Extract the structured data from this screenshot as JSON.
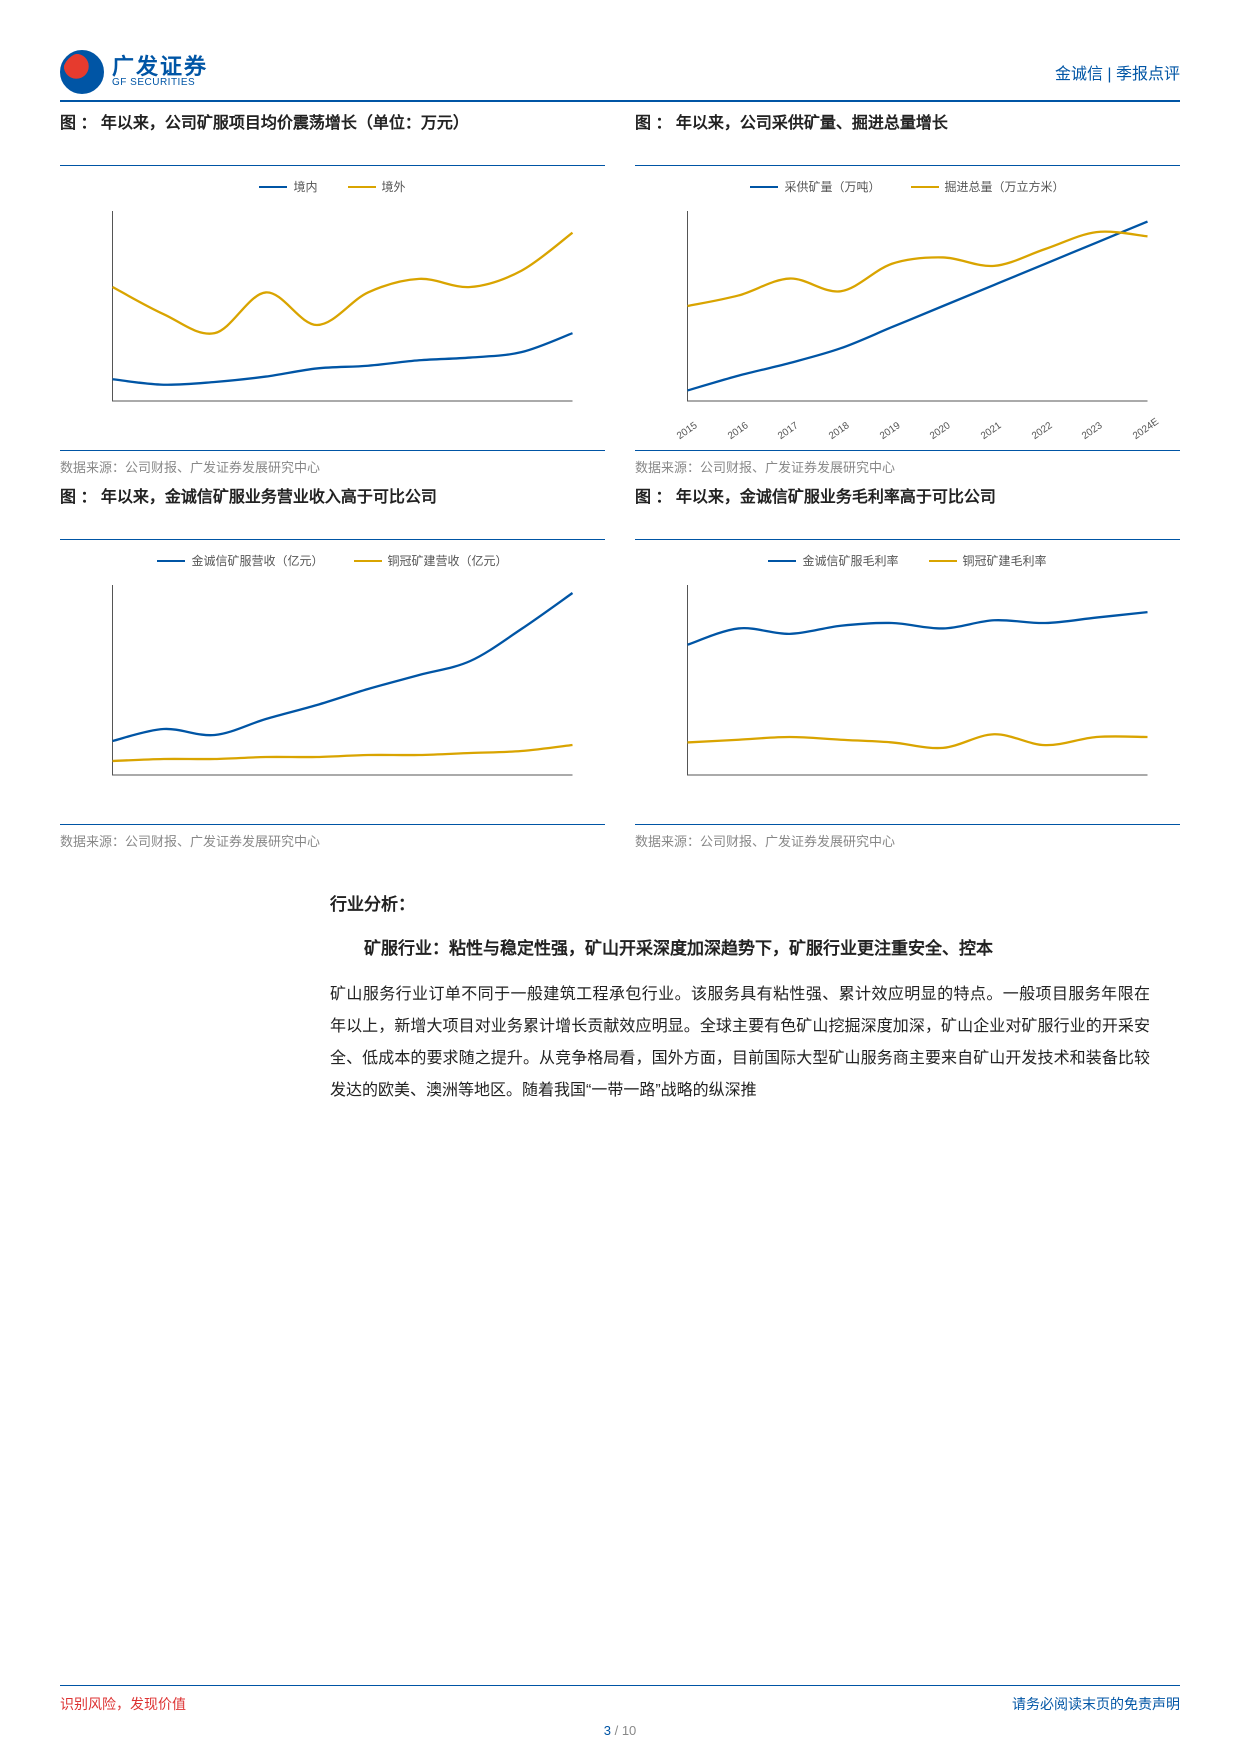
{
  "header": {
    "logo_cn": "广发证券",
    "logo_en": "GF SECURITIES",
    "right": "金诚信 | 季报点评"
  },
  "charts": {
    "c1": {
      "title": "图  ：       年以来，公司矿服项目均价震荡增长（单位：万元）",
      "source": "数据来源：公司财报、广发证券发展研究中心",
      "type": "line",
      "series": [
        {
          "name": "境内",
          "color": "#0055a5",
          "values": [
            38,
            36,
            37,
            39,
            42,
            43,
            45,
            46,
            48,
            55
          ]
        },
        {
          "name": "境外",
          "color": "#d9a400",
          "values": [
            72,
            62,
            55,
            70,
            58,
            70,
            75,
            72,
            78,
            92
          ]
        }
      ],
      "ylim": [
        30,
        100
      ]
    },
    "c2": {
      "title": "图  ：       年以来，公司采供矿量、掘进总量增长",
      "source": "数据来源：公司财报、广发证券发展研究中心",
      "type": "line",
      "xlabels": [
        "2015",
        "2016",
        "2017",
        "2018",
        "2019",
        "2020",
        "2021",
        "2022",
        "2023",
        "2024E"
      ],
      "series": [
        {
          "name": "采供矿量（万吨）",
          "color": "#0055a5",
          "values": [
            15,
            22,
            28,
            35,
            45,
            55,
            65,
            75,
            85,
            95
          ]
        },
        {
          "name": "掘进总量（万立方米）",
          "color": "#d9a400",
          "values": [
            55,
            60,
            68,
            62,
            75,
            78,
            74,
            82,
            90,
            88
          ]
        }
      ],
      "ylim": [
        10,
        100
      ]
    },
    "c3": {
      "title": "图  ：       年以来，金诚信矿服业务营业收入高于可比公司",
      "source": "数据来源：公司财报、广发证券发展研究中心",
      "type": "line",
      "series": [
        {
          "name": "金诚信矿服营收（亿元）",
          "color": "#0055a5",
          "values": [
            22,
            28,
            25,
            33,
            40,
            48,
            55,
            62,
            78,
            96
          ]
        },
        {
          "name": "铜冠矿建营收（亿元）",
          "color": "#d9a400",
          "values": [
            12,
            13,
            13,
            14,
            14,
            15,
            15,
            16,
            17,
            20
          ]
        }
      ],
      "ylim": [
        5,
        100
      ]
    },
    "c4": {
      "title": "图  ：       年以来，金诚信矿服业务毛利率高于可比公司",
      "source": "数据来源：公司财报、广发证券发展研究中心",
      "type": "line",
      "series": [
        {
          "name": "金诚信矿服毛利率",
          "color": "#0055a5",
          "values": [
            68,
            74,
            72,
            75,
            76,
            74,
            77,
            76,
            78,
            80
          ]
        },
        {
          "name": "铜冠矿建毛利率",
          "color": "#d9a400",
          "values": [
            32,
            33,
            34,
            33,
            32,
            30,
            35,
            31,
            34,
            34
          ]
        }
      ],
      "ylim": [
        20,
        90
      ]
    }
  },
  "chart_style": {
    "axis_color": "#555555",
    "line_width": 2.3,
    "background": "#ffffff",
    "font_size_legend": 12,
    "font_size_xlabel": 10
  },
  "text": {
    "section_title": "行业分析：",
    "section_sub": "矿服行业：粘性与稳定性强，矿山开采深度加深趋势下，矿服行业更注重安全、控本",
    "para": "矿山服务行业订单不同于一般建筑工程承包行业。该服务具有粘性强、累计效应明显的特点。一般项目服务年限在   年以上，新增大项目对业务累计增长贡献效应明显。全球主要有色矿山挖掘深度加深，矿山企业对矿服行业的开采安全、低成本的要求随之提升。从竞争格局看，国外方面，目前国际大型矿山服务商主要来自矿山开发技术和装备比较发达的欧美、澳洲等地区。随着我国“一带一路”战略的纵深推"
  },
  "footer": {
    "left": "识别风险，发现价值",
    "right": "请务必阅读末页的免责声明",
    "page_current": "3",
    "page_total": "10"
  }
}
